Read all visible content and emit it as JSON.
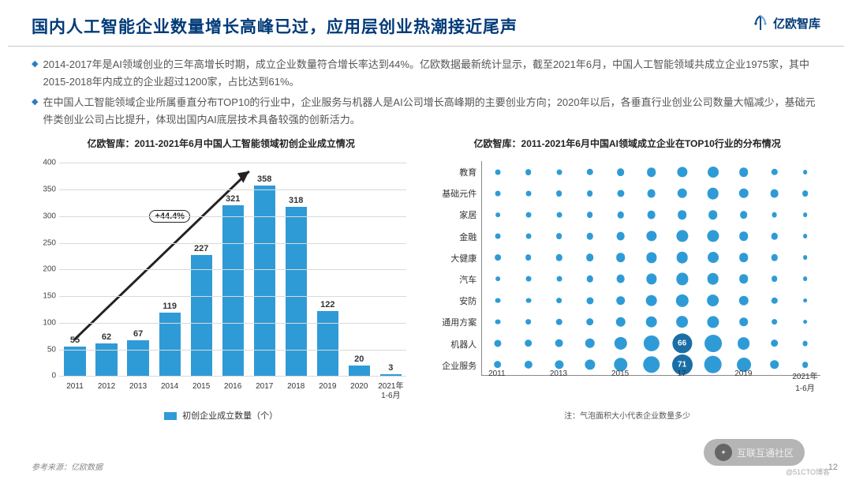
{
  "header": {
    "title": "国内人工智能企业数量增长高峰已过，应用层创业热潮接近尾声",
    "brand_name": "亿欧智库"
  },
  "bullets": [
    "2014-2017年是AI领域创业的三年高增长时期，成立企业数量符合增长率达到44%。亿欧数据最新统计显示，截至2021年6月，中国人工智能领域共成立企业1975家，其中2015-2018年内成立的企业超过1200家，占比达到61%。",
    "在中国人工智能领域企业所属垂直分布TOP10的行业中，企业服务与机器人是AI公司增长高峰期的主要创业方向；2020年以后，各垂直行业创业公司数量大幅减少，基础元件类创业公司占比提升，体现出国内AI底层技术具备较强的创新活力。"
  ],
  "bar_chart": {
    "type": "bar",
    "title": "亿欧智库：2011-2021年6月中国人工智能领域初创企业成立情况",
    "categories": [
      "2011",
      "2012",
      "2013",
      "2014",
      "2015",
      "2016",
      "2017",
      "2018",
      "2019",
      "2020",
      "2021年1-6月"
    ],
    "values": [
      55,
      62,
      67,
      119,
      227,
      321,
      358,
      318,
      122,
      20,
      3
    ],
    "y_ticks": [
      0,
      50,
      100,
      150,
      200,
      250,
      300,
      350,
      400
    ],
    "y_max": 400,
    "bar_color": "#2f9bd6",
    "grid_color": "#d9d9d9",
    "value_label_color": "#333333",
    "axis_label_color": "#333333",
    "annotation": "+44.4%",
    "legend": "初创企业成立数量（个）",
    "title_fontsize": 12,
    "arrow": {
      "from_cat_index": 0,
      "to_cat_index": 6
    }
  },
  "bubble_chart": {
    "type": "bubble-matrix",
    "title": "亿欧智库：2011-2021年6月中国AI领域成立企业在TOP10行业的分布情况",
    "y_categories": [
      "教育",
      "基础元件",
      "家居",
      "金融",
      "大健康",
      "汽车",
      "安防",
      "通用方案",
      "机器人",
      "企业服务"
    ],
    "x_categories": [
      "2011",
      "2012",
      "2013",
      "2014",
      "2015",
      "2016",
      "2017",
      "2018",
      "2019",
      "2020",
      "2021年1-6月"
    ],
    "x_tick_labels": [
      "2011",
      "",
      "2013",
      "",
      "2015",
      "",
      "   17",
      "",
      "2019",
      "",
      "2021年1-6月"
    ],
    "size_scale": "area",
    "bubble_color": "#2f9bd6",
    "highlight_color": "#1a6ea6",
    "background_color": "#ffffff",
    "axis_color": "#888888",
    "label_color": "#333333",
    "note": "注：气泡面积大小代表企业数量多少",
    "highlights": [
      {
        "row_index": 8,
        "col_index": 6,
        "value": 66
      },
      {
        "row_index": 9,
        "col_index": 6,
        "value": 71
      }
    ],
    "matrix": [
      [
        2,
        3,
        2,
        4,
        6,
        10,
        14,
        16,
        10,
        4,
        1
      ],
      [
        2,
        2,
        3,
        3,
        5,
        8,
        12,
        18,
        12,
        8,
        3
      ],
      [
        1,
        2,
        2,
        3,
        4,
        8,
        10,
        10,
        6,
        2,
        1
      ],
      [
        2,
        2,
        3,
        4,
        8,
        14,
        20,
        20,
        10,
        4,
        1
      ],
      [
        3,
        3,
        4,
        6,
        10,
        14,
        18,
        16,
        10,
        4,
        1
      ],
      [
        1,
        2,
        2,
        4,
        8,
        14,
        20,
        18,
        10,
        3,
        1
      ],
      [
        2,
        2,
        3,
        5,
        10,
        18,
        24,
        22,
        12,
        4,
        1
      ],
      [
        2,
        3,
        4,
        6,
        12,
        18,
        22,
        20,
        10,
        3,
        1
      ],
      [
        5,
        6,
        8,
        12,
        24,
        40,
        66,
        48,
        22,
        6,
        2
      ],
      [
        6,
        7,
        9,
        14,
        28,
        46,
        71,
        52,
        30,
        10,
        3
      ]
    ]
  },
  "footer": {
    "source": "参考来源：亿欧数据",
    "page": "12",
    "watermark_main": "互联互通社区",
    "watermark_sub": "@51CTO博客"
  },
  "colors": {
    "title": "#003a78",
    "text": "#555555",
    "diamond": "#2f7dc1"
  }
}
